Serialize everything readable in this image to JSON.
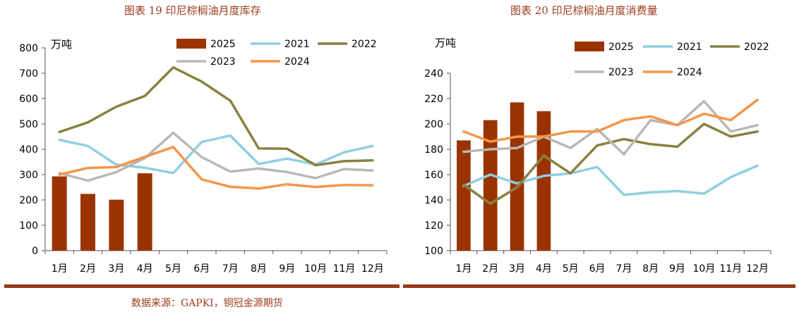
{
  "titles": {
    "left": "图表 19  印尼棕榈油月度库存",
    "right": "图表 20  印尼棕榈油月度消费量"
  },
  "source": "数据来源：GAPKI，铜冠金源期货",
  "colors": {
    "2025": "#9b3300",
    "2021": "#8fcfe0",
    "2022": "#8a8040",
    "2023": "#b8b8b8",
    "2024": "#f5964a",
    "divider": "#9a3a1a",
    "axis": "#555555"
  },
  "chart_data": [
    {
      "type": "bar+line",
      "title": "图表 19  印尼棕榈油月度库存",
      "unit": "万吨",
      "categories": [
        "1月",
        "2月",
        "3月",
        "4月",
        "5月",
        "6月",
        "7月",
        "8月",
        "9月",
        "10月",
        "11月",
        "12月"
      ],
      "ylim": [
        0,
        800
      ],
      "yticks": [
        0,
        100,
        200,
        300,
        400,
        500,
        600,
        700,
        800
      ],
      "legend_position": "top-center",
      "grid": false,
      "bars": {
        "name": "2025",
        "values": [
          293,
          224,
          201,
          305
        ]
      },
      "series": [
        {
          "name": "2021",
          "values": [
            437,
            413,
            339,
            327,
            306,
            429,
            454,
            342,
            363,
            340,
            388,
            413
          ]
        },
        {
          "name": "2022",
          "values": [
            468,
            506,
            568,
            610,
            723,
            667,
            592,
            403,
            402,
            337,
            353,
            356
          ]
        },
        {
          "name": "2023",
          "values": [
            306,
            276,
            310,
            365,
            465,
            369,
            312,
            324,
            310,
            286,
            322,
            316
          ]
        },
        {
          "name": "2024",
          "values": [
            300,
            326,
            330,
            370,
            409,
            281,
            252,
            245,
            262,
            251,
            259,
            258
          ]
        }
      ]
    },
    {
      "type": "bar+line",
      "title": "图表 20  印尼棕榈油月度消费量",
      "unit": "万吨",
      "categories": [
        "1月",
        "2月",
        "3月",
        "4月",
        "5月",
        "6月",
        "7月",
        "8月",
        "9月",
        "10月",
        "11月",
        "12月"
      ],
      "ylim": [
        100,
        240
      ],
      "yticks": [
        100,
        120,
        140,
        160,
        180,
        200,
        220,
        240
      ],
      "legend_position": "top-center",
      "grid": false,
      "bars": {
        "name": "2025",
        "values": [
          187,
          203,
          217,
          210
        ]
      },
      "series": [
        {
          "name": "2021",
          "values": [
            151,
            160,
            153,
            159,
            161,
            166,
            144,
            146,
            147,
            145,
            158,
            167
          ]
        },
        {
          "name": "2022",
          "values": [
            152,
            137,
            150,
            175,
            161,
            183,
            188,
            184,
            182,
            200,
            190,
            194
          ]
        },
        {
          "name": "2023",
          "values": [
            178,
            180,
            181,
            190,
            181,
            196,
            176,
            203,
            199,
            218,
            194,
            199
          ]
        },
        {
          "name": "2024",
          "values": [
            194,
            186,
            190,
            190,
            194,
            194,
            203,
            206,
            199,
            208,
            203,
            219
          ]
        }
      ]
    }
  ]
}
